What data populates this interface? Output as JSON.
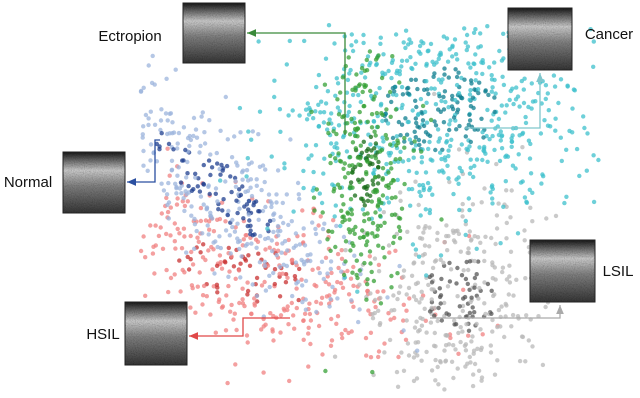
{
  "labels": {
    "ectropion": "Ectropion",
    "cancer": "Cancer",
    "normal": "Normal",
    "hsil": "HSIL",
    "lsil": "LSIL"
  }
}
